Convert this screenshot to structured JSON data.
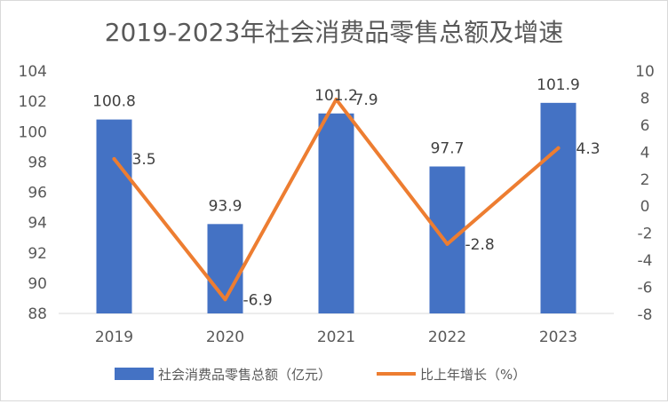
{
  "chart_data": {
    "type": "bar+line",
    "title": "2019-2023年社会消费品零售总额及增速",
    "categories": [
      "2019",
      "2020",
      "2021",
      "2022",
      "2023"
    ],
    "series": [
      {
        "name": "社会消费品零售总额（亿元）",
        "type": "bar",
        "axis": "left",
        "color": "#4472c4",
        "values": [
          100.8,
          93.9,
          101.2,
          97.7,
          101.9
        ],
        "labels": [
          "100.8",
          "93.9",
          "101.2",
          "97.7",
          "101.9"
        ]
      },
      {
        "name": "比上年增长（%）",
        "type": "line",
        "axis": "right",
        "color": "#ed7d31",
        "values": [
          3.5,
          -6.9,
          7.9,
          -2.8,
          4.3
        ],
        "labels": [
          "3.5",
          "-6.9",
          "7.9",
          "-2.8",
          "4.3"
        ]
      }
    ],
    "y_left": {
      "min": 88,
      "max": 104,
      "step": 2,
      "tick_labels": [
        "88",
        "90",
        "92",
        "94",
        "96",
        "98",
        "100",
        "102",
        "104"
      ]
    },
    "y_right": {
      "min": -8,
      "max": 10,
      "step": 2,
      "tick_labels": [
        "-8",
        "-6",
        "-4",
        "-2",
        "0",
        "2",
        "4",
        "6",
        "8",
        "10"
      ]
    },
    "grid": false,
    "legend": "bottom"
  }
}
